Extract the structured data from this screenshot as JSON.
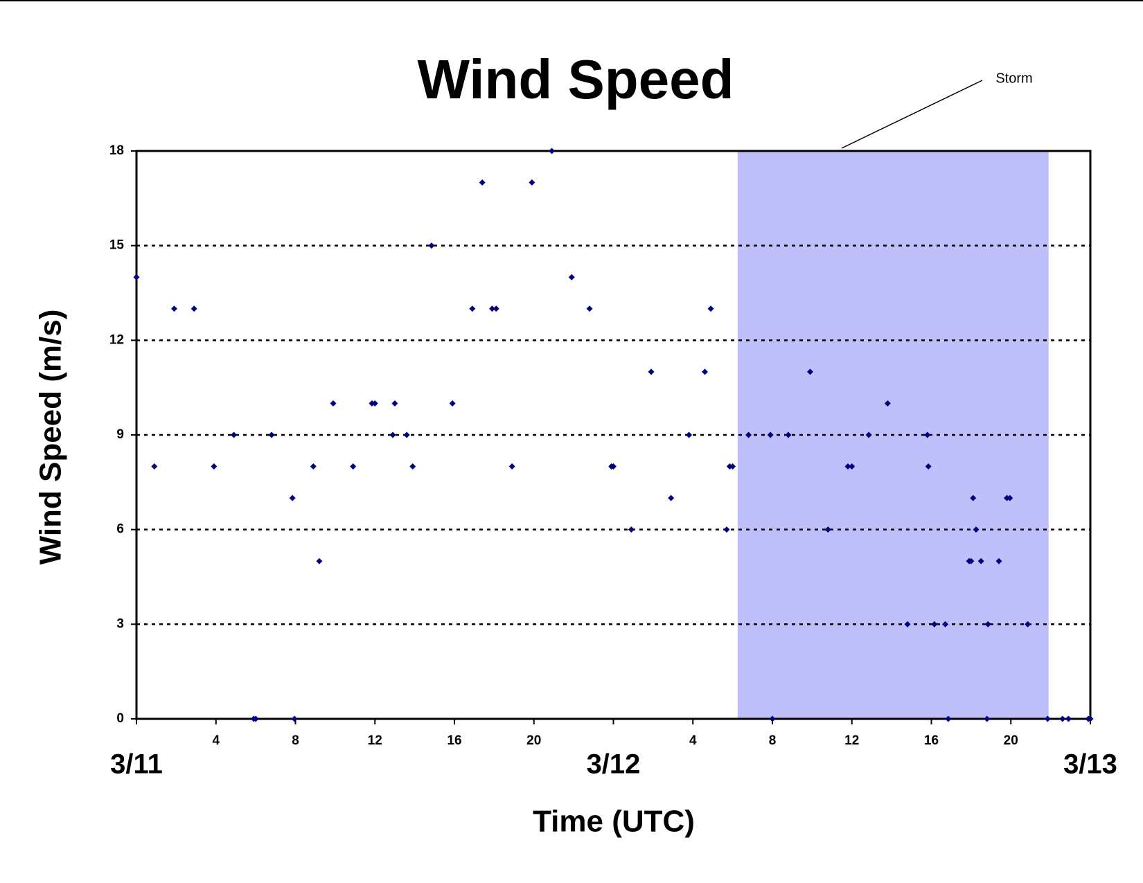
{
  "chart_data": {
    "type": "scatter",
    "title": "Wind Speed",
    "x_label": "Time (UTC)",
    "y_label": "Wind Speed (m/s)",
    "color": "#00007f",
    "x": [
      0,
      0.9,
      1.9,
      2.9,
      3.9,
      4.9,
      5.9,
      6,
      6.8,
      7.85,
      7.95,
      8.9,
      9.2,
      9.9,
      10.9,
      11.85,
      12,
      12.9,
      13,
      13.6,
      13.9,
      14.85,
      15.9,
      16.9,
      17.4,
      17.9,
      18.1,
      18.9,
      19.9,
      20.9,
      21.9,
      22.8,
      23.9,
      24,
      24.9,
      25.9,
      26.9,
      27.8,
      28.6,
      28.9,
      29.7,
      29.85,
      30,
      30.8,
      31.9,
      32,
      32.8,
      33.9,
      34.8,
      35.8,
      36,
      36.85,
      37.8,
      38.8,
      39.8,
      39.85,
      40.15,
      40.7,
      40.85,
      41.9,
      42,
      42.1,
      42.25,
      42.5,
      42.8,
      42.85,
      43.4,
      43.8,
      43.95,
      44.85,
      45.85,
      46.6,
      46.9,
      47.9,
      48
    ],
    "values": [
      14,
      8,
      13,
      13,
      8,
      9,
      0,
      0,
      9,
      7,
      0,
      8,
      5,
      10,
      8,
      10,
      10,
      9,
      10,
      9,
      8,
      15,
      10,
      13,
      17,
      13,
      13,
      8,
      17,
      18,
      14,
      13,
      8,
      8,
      6,
      11,
      7,
      9,
      11,
      13,
      6,
      8,
      8,
      9,
      9,
      0,
      9,
      11,
      6,
      8,
      8,
      9,
      10,
      3,
      9,
      8,
      3,
      3,
      0,
      5,
      5,
      7,
      6,
      5,
      0,
      3,
      5,
      7,
      7,
      3,
      0,
      0,
      0,
      0,
      0
    ],
    "xlim": [
      0,
      48
    ],
    "ylim": [
      0,
      18
    ],
    "yticks": [
      0,
      3,
      6,
      9,
      12,
      15,
      18
    ],
    "xticks": [
      4,
      8,
      12,
      16,
      20,
      {
        "value": 28,
        "label": "4"
      },
      {
        "value": 32,
        "label": "8"
      },
      {
        "value": 36,
        "label": "12"
      },
      {
        "value": 40,
        "label": "16"
      },
      {
        "value": 44,
        "label": "20"
      }
    ],
    "date_ticks": [
      {
        "value": 0,
        "label": "3/11"
      },
      {
        "value": 24,
        "label": "3/12"
      },
      {
        "value": 48,
        "label": "3/13"
      }
    ],
    "grid": true,
    "shade": {
      "xlim": [
        30.25,
        45.9
      ],
      "color": "#bfbffa",
      "label": "Storm"
    }
  }
}
